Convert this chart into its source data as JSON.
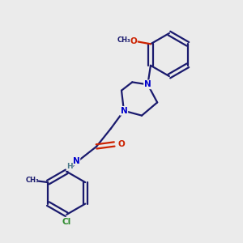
{
  "background_color": "#ebebeb",
  "bond_color": "#1a1a6e",
  "N_color": "#0000cc",
  "O_color": "#cc2200",
  "Cl_color": "#2d8a2d",
  "H_color": "#4a7a8a",
  "figsize": [
    3.0,
    3.0
  ],
  "dpi": 100,
  "xlim": [
    0,
    10
  ],
  "ylim": [
    0,
    10
  ]
}
